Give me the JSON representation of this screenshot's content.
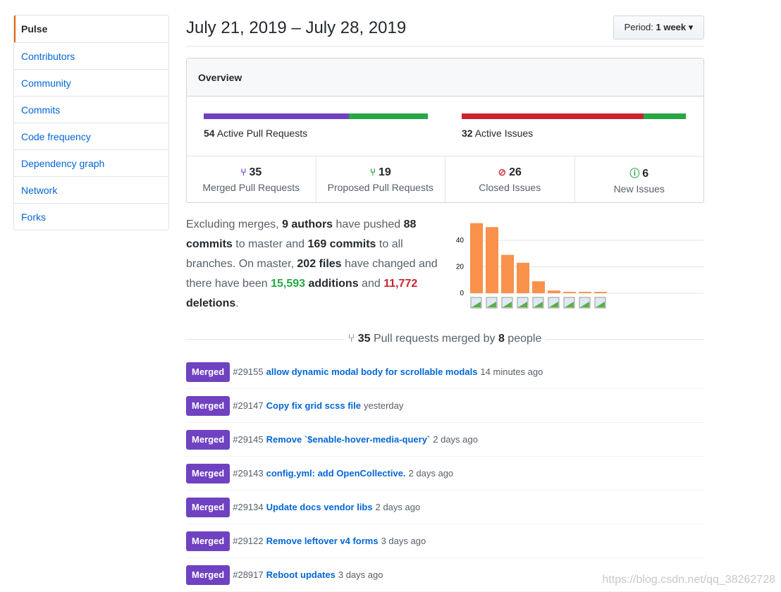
{
  "sidebar": {
    "items": [
      "Pulse",
      "Contributors",
      "Community",
      "Commits",
      "Code frequency",
      "Dependency graph",
      "Network",
      "Forks"
    ]
  },
  "header": {
    "title": "July 21, 2019 – July 28, 2019",
    "period_label": "Period:",
    "period_value": "1 week"
  },
  "overview": {
    "title": "Overview",
    "active_prs": "54",
    "active_prs_label": "Active Pull Requests",
    "active_issues": "32",
    "active_issues_label": "Active Issues",
    "pr_bar": {
      "merged_fraction": 0.648,
      "colors": [
        "#6f42c1",
        "#28a745"
      ]
    },
    "issue_bar": {
      "closed_fraction": 0.8125,
      "colors": [
        "#cb2431",
        "#28a745"
      ]
    },
    "stats": [
      {
        "icon": "git-merge-icon",
        "color": "#6f42c1",
        "count": "35",
        "label": "Merged Pull Requests"
      },
      {
        "icon": "git-pull-request-icon",
        "color": "#28a745",
        "count": "19",
        "label": "Proposed Pull Requests"
      },
      {
        "icon": "issue-closed-icon",
        "color": "#cb2431",
        "count": "26",
        "label": "Closed Issues"
      },
      {
        "icon": "issue-opened-icon",
        "color": "#28a745",
        "count": "6",
        "label": "New Issues"
      }
    ]
  },
  "summary": {
    "t1": "Excluding merges, ",
    "authors": "9 authors",
    "t2": " have pushed ",
    "commits_master": "88 commits",
    "t3": " to master and ",
    "commits_all": "169 commits",
    "t4": " to all branches. On master, ",
    "files": "202 files",
    "t5": " have changed and there have been ",
    "additions": "15,593",
    "t6": " additions",
    "t7": " and ",
    "deletions": "11,772",
    "t8": " deletions",
    "t9": "."
  },
  "chart_data": {
    "type": "bar",
    "values": [
      53,
      50,
      29,
      23,
      9,
      2,
      1,
      1,
      1
    ],
    "yticks": [
      "0",
      "20",
      "40"
    ],
    "ylim": [
      0,
      55
    ],
    "grid": true,
    "color": "#f9914b"
  },
  "merged": {
    "count": "35",
    "t1": " Pull requests merged by ",
    "people": "8",
    "t2": " people",
    "items": [
      {
        "badge": "Merged",
        "num": "#29155",
        "title": "allow dynamic modal body for scrollable modals",
        "time": "14 minutes ago"
      },
      {
        "badge": "Merged",
        "num": "#29147",
        "title": "Copy fix grid scss file",
        "time": "yesterday"
      },
      {
        "badge": "Merged",
        "num": "#29145",
        "title": "Remove `$enable-hover-media-query`",
        "time": "2 days ago"
      },
      {
        "badge": "Merged",
        "num": "#29143",
        "title": "config.yml: add OpenCollective.",
        "time": "2 days ago"
      },
      {
        "badge": "Merged",
        "num": "#29134",
        "title": "Update docs vendor libs",
        "time": "2 days ago"
      },
      {
        "badge": "Merged",
        "num": "#29122",
        "title": "Remove leftover v4 forms",
        "time": "3 days ago"
      },
      {
        "badge": "Merged",
        "num": "#28917",
        "title": "Reboot updates",
        "time": "3 days ago"
      }
    ]
  },
  "watermark": "https://blog.csdn.net/qq_38262728"
}
